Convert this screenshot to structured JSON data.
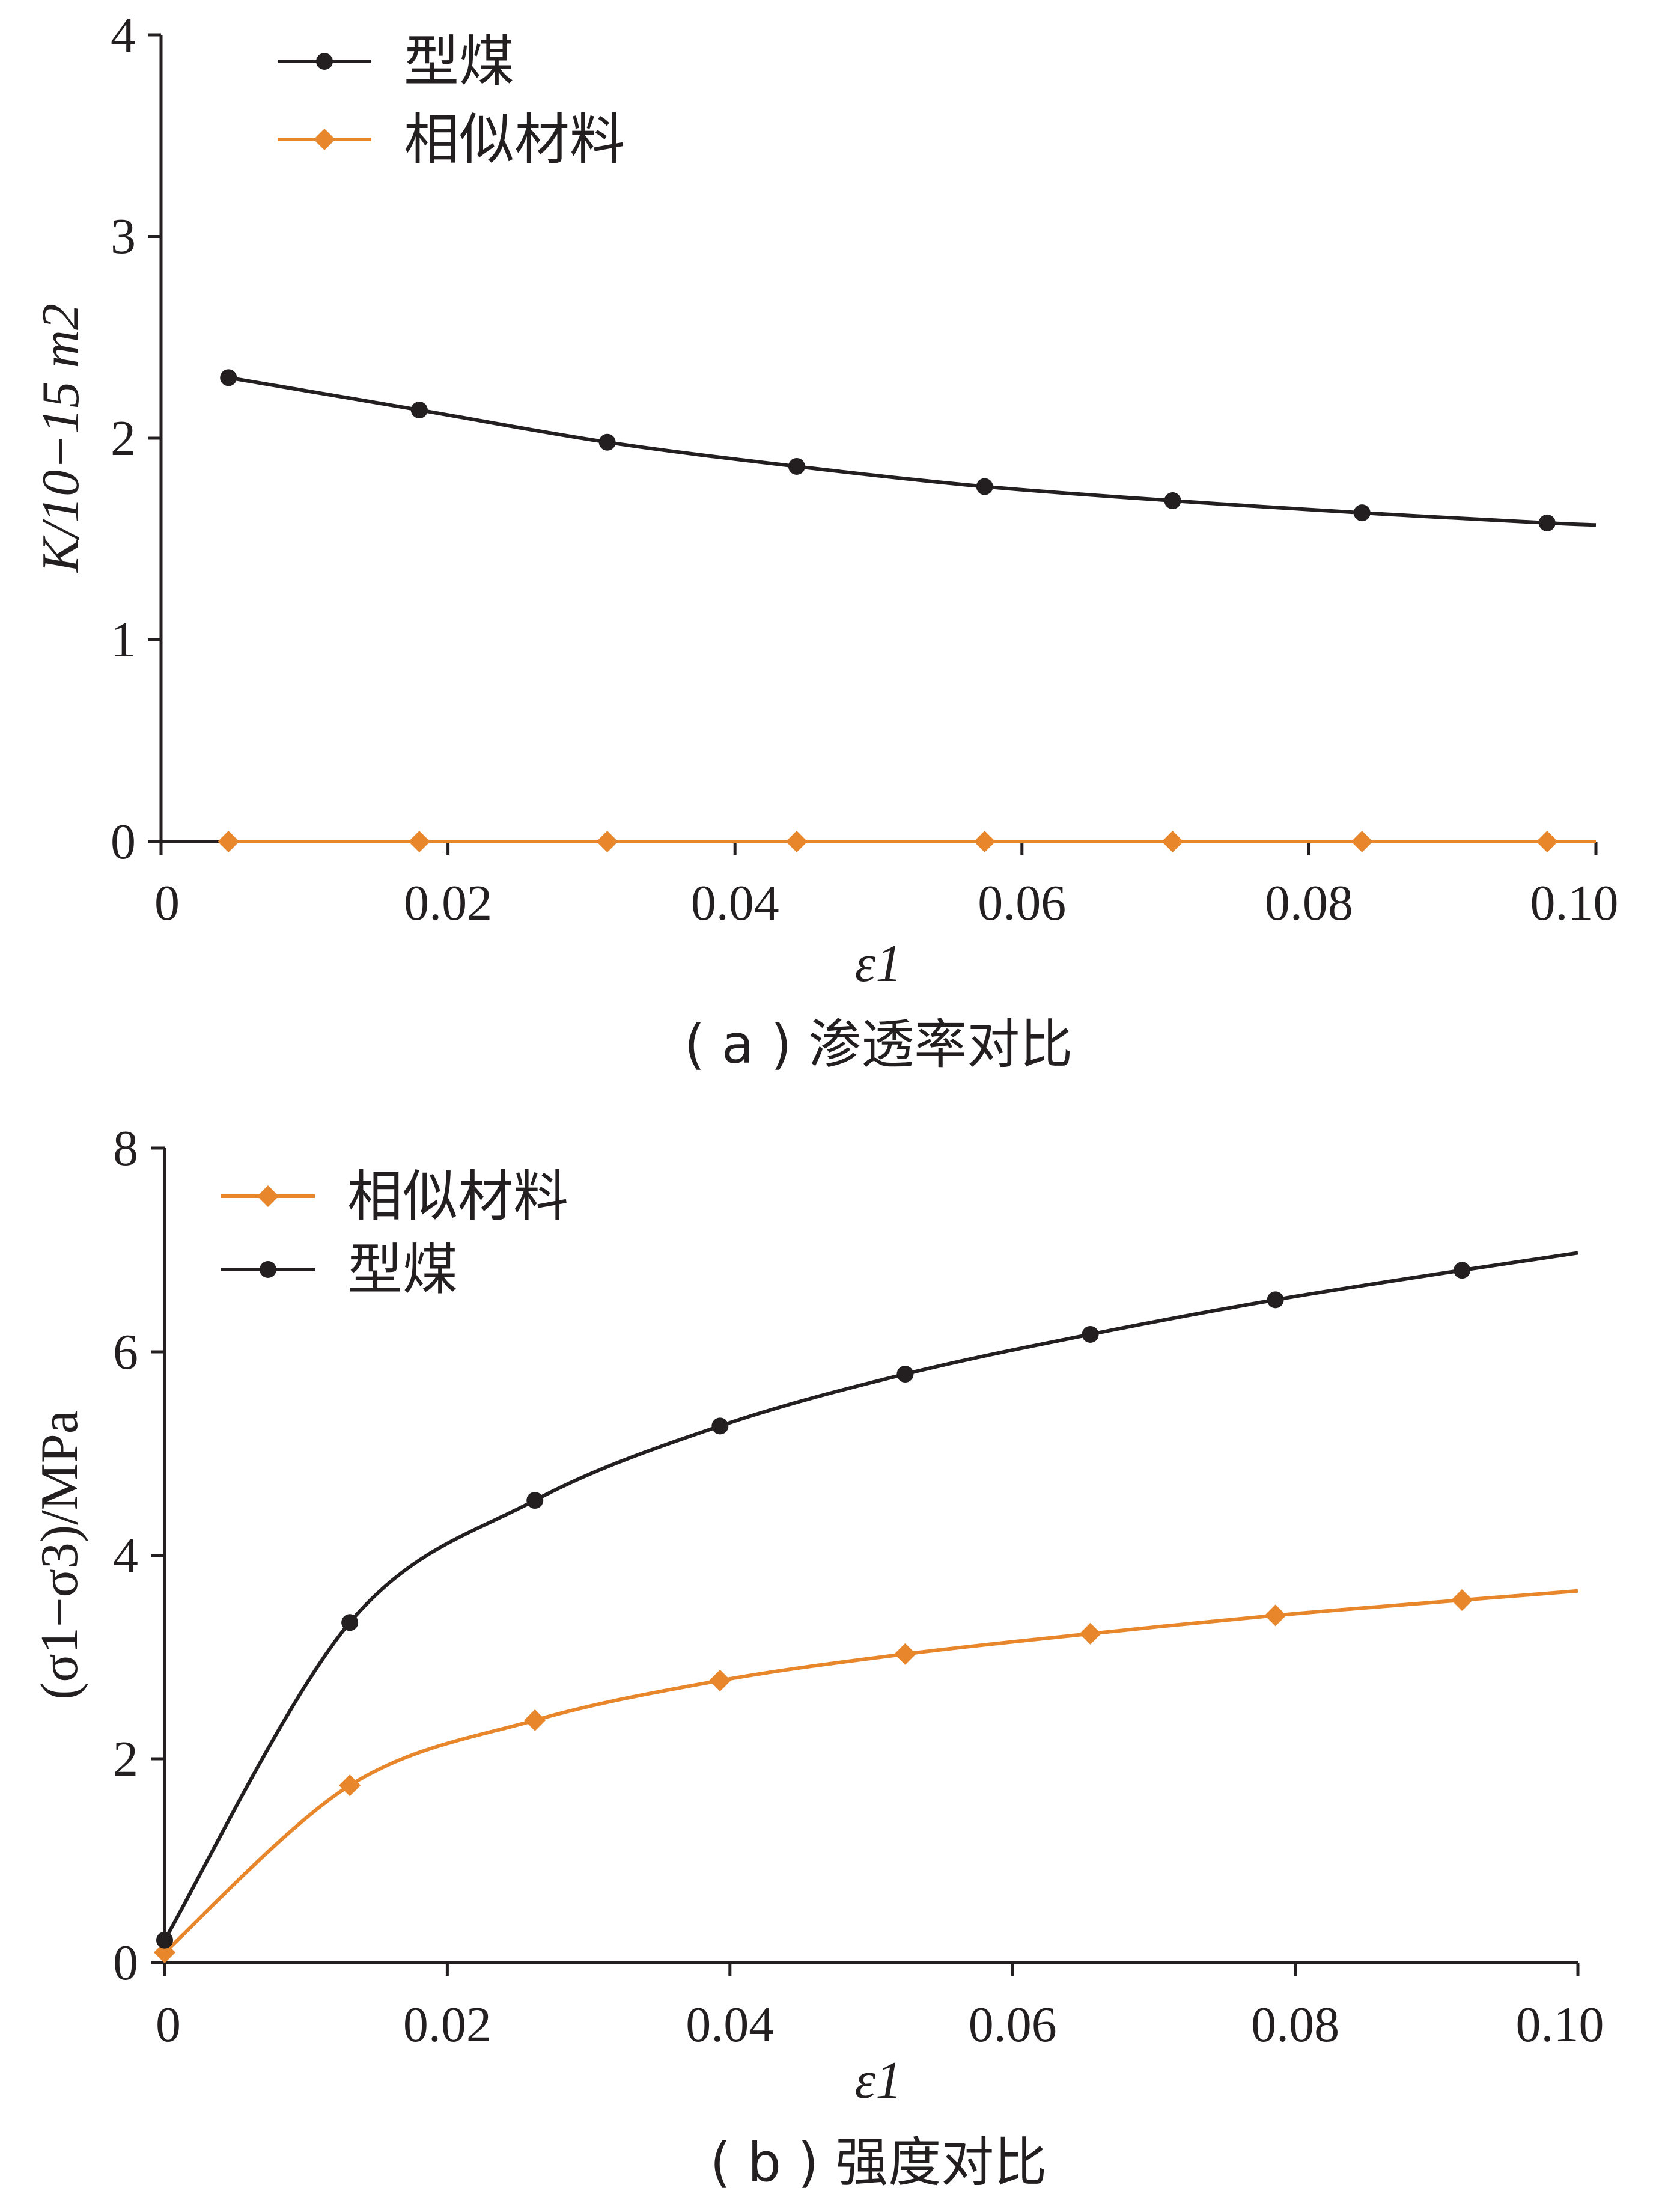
{
  "chart_data": [
    {
      "type": "line",
      "caption": "( a ) 渗透率对比",
      "xlabel": "ε1",
      "ylabel": "K/10−15 m2",
      "xlim": [
        0,
        0.1
      ],
      "ylim": [
        0,
        4
      ],
      "xticks": [
        "0",
        "0.02",
        "0.04",
        "0.06",
        "0.08",
        "0.10"
      ],
      "xtick_values": [
        0,
        0.02,
        0.04,
        0.06,
        0.08,
        0.1
      ],
      "yticks": [
        "0",
        "1",
        "2",
        "3",
        "4"
      ],
      "ytick_values": [
        0,
        1,
        2,
        3,
        4
      ],
      "legend_position": "top-left",
      "series": [
        {
          "name": "型煤",
          "color": "#231f20",
          "marker": "circle",
          "x": [
            0.0047,
            0.018,
            0.0311,
            0.0443,
            0.0574,
            0.0705,
            0.0837,
            0.0966
          ],
          "y": [
            2.3,
            2.14,
            1.98,
            1.86,
            1.76,
            1.69,
            1.63,
            1.58
          ],
          "curve_end": [
            0.1,
            1.57
          ]
        },
        {
          "name": "相似材料",
          "color": "#e8862b",
          "marker": "diamond",
          "x": [
            0.0047,
            0.018,
            0.0311,
            0.0443,
            0.0574,
            0.0705,
            0.0837,
            0.0966
          ],
          "y": [
            0,
            0,
            0,
            0,
            0,
            0,
            0,
            0
          ],
          "curve_end": [
            0.1,
            0
          ]
        }
      ]
    },
    {
      "type": "line",
      "caption": "( b ) 强度对比",
      "xlabel": "ε1",
      "ylabel": "(σ1−σ3)/MPa",
      "xlim": [
        0,
        0.1
      ],
      "ylim": [
        0,
        8
      ],
      "xticks": [
        "0",
        "0.02",
        "0.04",
        "0.06",
        "0.08",
        "0.10"
      ],
      "xtick_values": [
        0,
        0.02,
        0.04,
        0.06,
        0.08,
        0.1
      ],
      "yticks": [
        "0",
        "2",
        "4",
        "6",
        "8"
      ],
      "ytick_values": [
        0,
        2,
        4,
        6,
        8
      ],
      "legend_position": "top-left",
      "series": [
        {
          "name": "相似材料",
          "color": "#e8862b",
          "marker": "diamond",
          "x": [
            0,
            0.0131,
            0.0262,
            0.0393,
            0.0524,
            0.0655,
            0.0786,
            0.0918
          ],
          "y": [
            0.1,
            1.74,
            2.38,
            2.77,
            3.03,
            3.23,
            3.41,
            3.56
          ],
          "curve_end": [
            0.1,
            3.65
          ]
        },
        {
          "name": "型煤",
          "color": "#231f20",
          "marker": "circle",
          "x": [
            0,
            0.0131,
            0.0262,
            0.0393,
            0.0524,
            0.0655,
            0.0786,
            0.0918
          ],
          "y": [
            0.22,
            3.34,
            4.54,
            5.27,
            5.78,
            6.17,
            6.51,
            6.8
          ],
          "curve_end": [
            0.1,
            6.97
          ]
        }
      ]
    }
  ]
}
